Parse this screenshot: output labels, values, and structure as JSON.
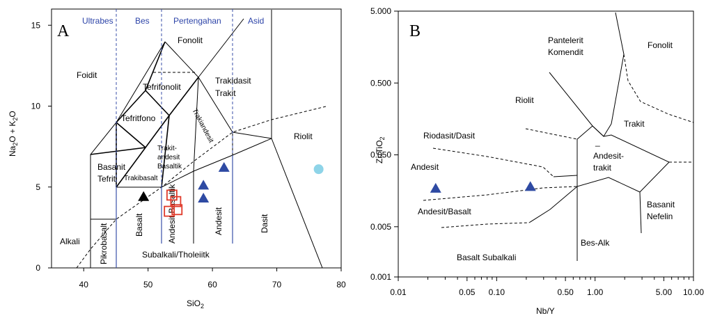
{
  "chart_data": [
    {
      "type": "scatter",
      "panel_label": "A",
      "xlabel": "SiO2",
      "ylabel": "Na2O + K2O",
      "xlim": [
        35,
        80
      ],
      "ylim": [
        0,
        16
      ],
      "xticks": [
        "40",
        "50",
        "60",
        "70",
        "80"
      ],
      "yticks": [
        "0",
        "5",
        "10",
        "15"
      ],
      "top_labels": [
        "Ultrabes",
        "Bes",
        "Pertengahan",
        "Asid"
      ],
      "region_labels": {
        "fonolit": "Fonolit",
        "foidit": "Foidit",
        "tefrifonolit": "Tefrifonolit",
        "trakidasit": "Trakidasit",
        "trakit": "Trakit",
        "tefritfono": "Tefritfono",
        "trakiandesit": "Trakiandesit",
        "basanit": "Basanit",
        "tefrit": "Tefrit",
        "trakiandesit_basaltik_1": "Trakit-",
        "trakiandesit_basaltik_2": "andesit",
        "trakiandesit_basaltik_3": "Basaltik",
        "trakibasalt": "Trakibasalt",
        "riolit": "Riolit",
        "alkali": "Alkali",
        "pikrobasalt": "Pikrobasalt",
        "basalt": "Basalt",
        "andesit_basaltik": "Andesit Basaltik",
        "andesit": "Andesit",
        "dasit": "Dasit",
        "subalkali": "Subalkali/Tholeiitk"
      },
      "series": [
        {
          "marker": "triangle",
          "color": "#000000",
          "points": [
            [
              49.3,
              4.4
            ]
          ]
        },
        {
          "marker": "open-square",
          "color": "#e03a2a",
          "points": [
            [
              53.7,
              4.5
            ],
            [
              54.3,
              4.1
            ],
            [
              53.3,
              3.5
            ],
            [
              54.5,
              3.6
            ]
          ]
        },
        {
          "marker": "triangle",
          "color": "#2e4aa3",
          "points": [
            [
              58.6,
              5.1
            ],
            [
              58.6,
              4.3
            ],
            [
              61.8,
              6.2
            ]
          ]
        },
        {
          "marker": "circle",
          "color": "#8ed4e8",
          "points": [
            [
              76.5,
              6.1
            ]
          ]
        }
      ]
    },
    {
      "type": "scatter",
      "panel_label": "B",
      "xlabel": "Nb/Y",
      "ylabel": "Zr/TiO2",
      "xscale": "log",
      "yscale": "log",
      "xticks": [
        "0.01",
        "0.05",
        "0.10",
        "0.50",
        "1.00",
        "5.00",
        "10.00"
      ],
      "yticks": [
        "0.001",
        "0.005",
        "0.050",
        "0.500",
        "5.000"
      ],
      "region_labels": {
        "pantelerit": "Pantelerit",
        "komendit": "Komendit",
        "fonolit": "Fonolit",
        "riolit": "Riolit",
        "trakit": "Trakit",
        "riodasit": "Riodasit/Dasit",
        "andesit_trakit_dash": "_",
        "andesit_trakit_1": "Andesit-",
        "andesit_trakit_2": "trakit",
        "andesit": "Andesit",
        "andesit_basalt": "Andesit/Basalt",
        "basanit": "Basanit",
        "nefelin": "Nefelin",
        "besalk": "Bes-Alk",
        "basalt_subalkali": "Basalt Subalkali"
      },
      "series": [
        {
          "marker": "triangle",
          "color": "#2e4aa3",
          "points": [
            [
              0.024,
              0.017
            ],
            [
              0.22,
              0.018
            ]
          ]
        }
      ]
    }
  ]
}
